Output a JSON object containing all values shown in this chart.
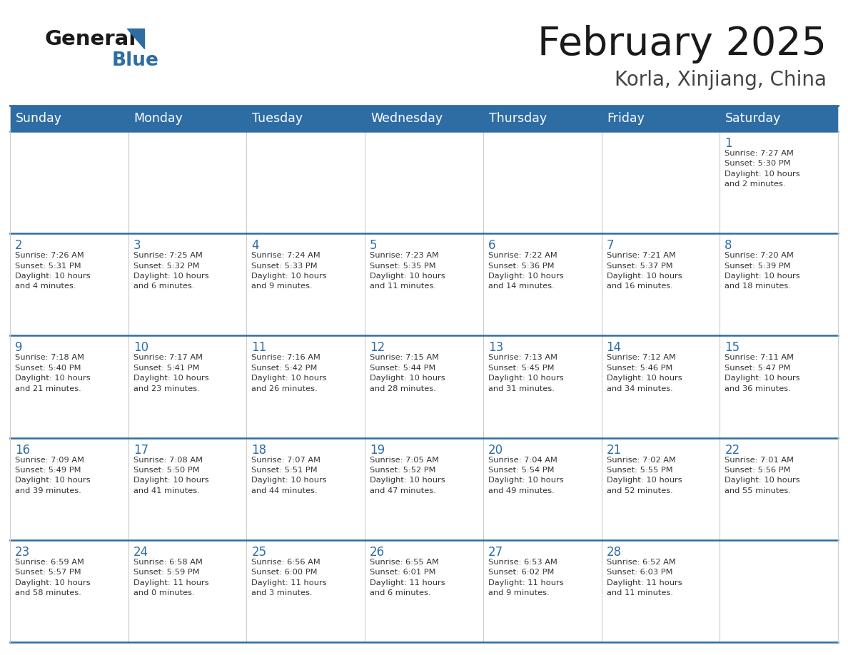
{
  "title": "February 2025",
  "subtitle": "Korla, Xinjiang, China",
  "header_bg": "#2E6DA4",
  "header_text": "#FFFFFF",
  "cell_bg": "#FFFFFF",
  "cell_bg_last": "#F5F5F5",
  "row_border_color": "#2E6DA4",
  "col_border_color": "#CCCCCC",
  "outer_border_color": "#2E6DA4",
  "day_names": [
    "Sunday",
    "Monday",
    "Tuesday",
    "Wednesday",
    "Thursday",
    "Friday",
    "Saturday"
  ],
  "title_color": "#1a1a1a",
  "subtitle_color": "#444444",
  "day_number_color": "#2E6DA4",
  "cell_text_color": "#333333",
  "logo_general_color": "#1a1a1a",
  "logo_blue_color": "#2E6DA4",
  "logo_triangle_color": "#2E6DA4",
  "weeks": [
    [
      {
        "day": null,
        "text": null
      },
      {
        "day": null,
        "text": null
      },
      {
        "day": null,
        "text": null
      },
      {
        "day": null,
        "text": null
      },
      {
        "day": null,
        "text": null
      },
      {
        "day": null,
        "text": null
      },
      {
        "day": 1,
        "text": "Sunrise: 7:27 AM\nSunset: 5:30 PM\nDaylight: 10 hours\nand 2 minutes."
      }
    ],
    [
      {
        "day": 2,
        "text": "Sunrise: 7:26 AM\nSunset: 5:31 PM\nDaylight: 10 hours\nand 4 minutes."
      },
      {
        "day": 3,
        "text": "Sunrise: 7:25 AM\nSunset: 5:32 PM\nDaylight: 10 hours\nand 6 minutes."
      },
      {
        "day": 4,
        "text": "Sunrise: 7:24 AM\nSunset: 5:33 PM\nDaylight: 10 hours\nand 9 minutes."
      },
      {
        "day": 5,
        "text": "Sunrise: 7:23 AM\nSunset: 5:35 PM\nDaylight: 10 hours\nand 11 minutes."
      },
      {
        "day": 6,
        "text": "Sunrise: 7:22 AM\nSunset: 5:36 PM\nDaylight: 10 hours\nand 14 minutes."
      },
      {
        "day": 7,
        "text": "Sunrise: 7:21 AM\nSunset: 5:37 PM\nDaylight: 10 hours\nand 16 minutes."
      },
      {
        "day": 8,
        "text": "Sunrise: 7:20 AM\nSunset: 5:39 PM\nDaylight: 10 hours\nand 18 minutes."
      }
    ],
    [
      {
        "day": 9,
        "text": "Sunrise: 7:18 AM\nSunset: 5:40 PM\nDaylight: 10 hours\nand 21 minutes."
      },
      {
        "day": 10,
        "text": "Sunrise: 7:17 AM\nSunset: 5:41 PM\nDaylight: 10 hours\nand 23 minutes."
      },
      {
        "day": 11,
        "text": "Sunrise: 7:16 AM\nSunset: 5:42 PM\nDaylight: 10 hours\nand 26 minutes."
      },
      {
        "day": 12,
        "text": "Sunrise: 7:15 AM\nSunset: 5:44 PM\nDaylight: 10 hours\nand 28 minutes."
      },
      {
        "day": 13,
        "text": "Sunrise: 7:13 AM\nSunset: 5:45 PM\nDaylight: 10 hours\nand 31 minutes."
      },
      {
        "day": 14,
        "text": "Sunrise: 7:12 AM\nSunset: 5:46 PM\nDaylight: 10 hours\nand 34 minutes."
      },
      {
        "day": 15,
        "text": "Sunrise: 7:11 AM\nSunset: 5:47 PM\nDaylight: 10 hours\nand 36 minutes."
      }
    ],
    [
      {
        "day": 16,
        "text": "Sunrise: 7:09 AM\nSunset: 5:49 PM\nDaylight: 10 hours\nand 39 minutes."
      },
      {
        "day": 17,
        "text": "Sunrise: 7:08 AM\nSunset: 5:50 PM\nDaylight: 10 hours\nand 41 minutes."
      },
      {
        "day": 18,
        "text": "Sunrise: 7:07 AM\nSunset: 5:51 PM\nDaylight: 10 hours\nand 44 minutes."
      },
      {
        "day": 19,
        "text": "Sunrise: 7:05 AM\nSunset: 5:52 PM\nDaylight: 10 hours\nand 47 minutes."
      },
      {
        "day": 20,
        "text": "Sunrise: 7:04 AM\nSunset: 5:54 PM\nDaylight: 10 hours\nand 49 minutes."
      },
      {
        "day": 21,
        "text": "Sunrise: 7:02 AM\nSunset: 5:55 PM\nDaylight: 10 hours\nand 52 minutes."
      },
      {
        "day": 22,
        "text": "Sunrise: 7:01 AM\nSunset: 5:56 PM\nDaylight: 10 hours\nand 55 minutes."
      }
    ],
    [
      {
        "day": 23,
        "text": "Sunrise: 6:59 AM\nSunset: 5:57 PM\nDaylight: 10 hours\nand 58 minutes."
      },
      {
        "day": 24,
        "text": "Sunrise: 6:58 AM\nSunset: 5:59 PM\nDaylight: 11 hours\nand 0 minutes."
      },
      {
        "day": 25,
        "text": "Sunrise: 6:56 AM\nSunset: 6:00 PM\nDaylight: 11 hours\nand 3 minutes."
      },
      {
        "day": 26,
        "text": "Sunrise: 6:55 AM\nSunset: 6:01 PM\nDaylight: 11 hours\nand 6 minutes."
      },
      {
        "day": 27,
        "text": "Sunrise: 6:53 AM\nSunset: 6:02 PM\nDaylight: 11 hours\nand 9 minutes."
      },
      {
        "day": 28,
        "text": "Sunrise: 6:52 AM\nSunset: 6:03 PM\nDaylight: 11 hours\nand 11 minutes."
      },
      {
        "day": null,
        "text": null
      }
    ]
  ]
}
